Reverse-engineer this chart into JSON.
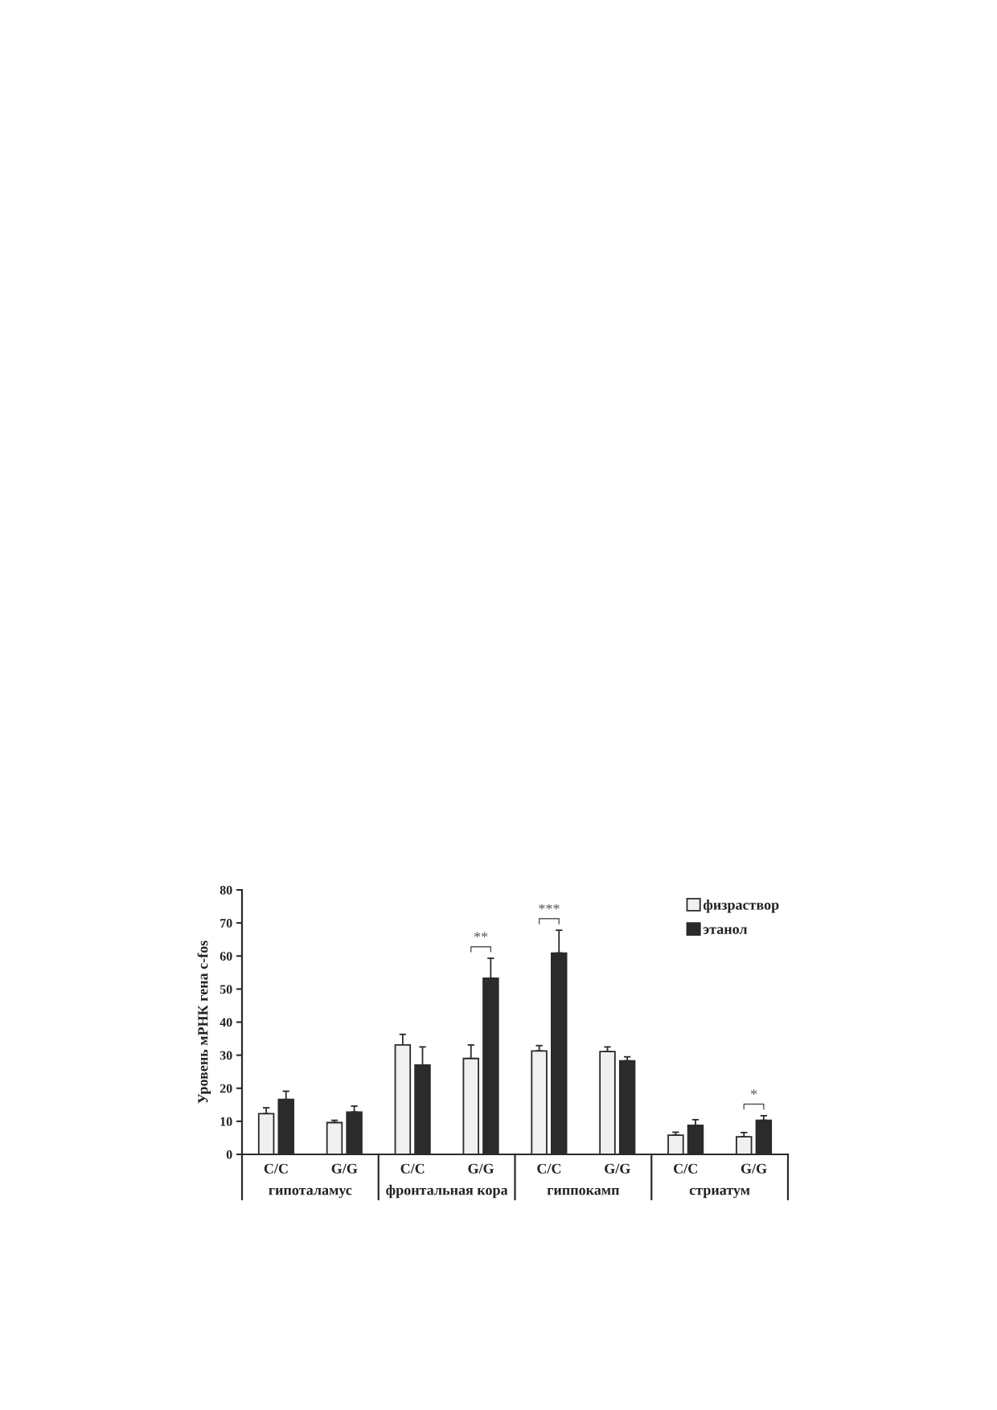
{
  "chart_data": {
    "type": "bar",
    "ylabel": "Уровень мРНК гена c-fos",
    "categories": [
      "C/C",
      "G/G",
      "C/C",
      "G/G",
      "C/C",
      "G/G",
      "C/C",
      "G/G"
    ],
    "series": [
      {
        "name": "физраствор",
        "color": "#f0f0f0",
        "values": [
          12.3,
          9.6,
          33.1,
          29.0,
          31.3,
          31.1,
          5.8,
          5.3
        ],
        "errors": [
          [
            12.3,
            14.1
          ],
          [
            9.6,
            10.3
          ],
          [
            33.1,
            36.3
          ],
          [
            29.0,
            33.1
          ],
          [
            31.3,
            32.9
          ],
          [
            31.1,
            32.5
          ],
          [
            5.8,
            6.7
          ],
          [
            5.3,
            6.6
          ]
        ]
      },
      {
        "name": "этанол",
        "color": "#2b2b2b",
        "values": [
          16.6,
          12.8,
          27.0,
          53.3,
          60.9,
          28.3,
          8.8,
          10.3
        ],
        "errors": [
          [
            16.6,
            19.1
          ],
          [
            12.8,
            14.6
          ],
          [
            27.0,
            32.5
          ],
          [
            53.3,
            59.3
          ],
          [
            60.9,
            67.8
          ],
          [
            28.3,
            29.5
          ],
          [
            8.8,
            10.5
          ],
          [
            10.3,
            11.7
          ]
        ]
      }
    ],
    "ylim": [
      0,
      80
    ],
    "yticks": [
      0,
      10,
      20,
      30,
      40,
      50,
      60,
      70,
      80
    ],
    "grid": false,
    "legend": "top right",
    "annotations": [
      "**",
      "***",
      "*",
      "гипоталамус",
      "фронтальная кора",
      "гиппокамп",
      "стриатум"
    ]
  }
}
